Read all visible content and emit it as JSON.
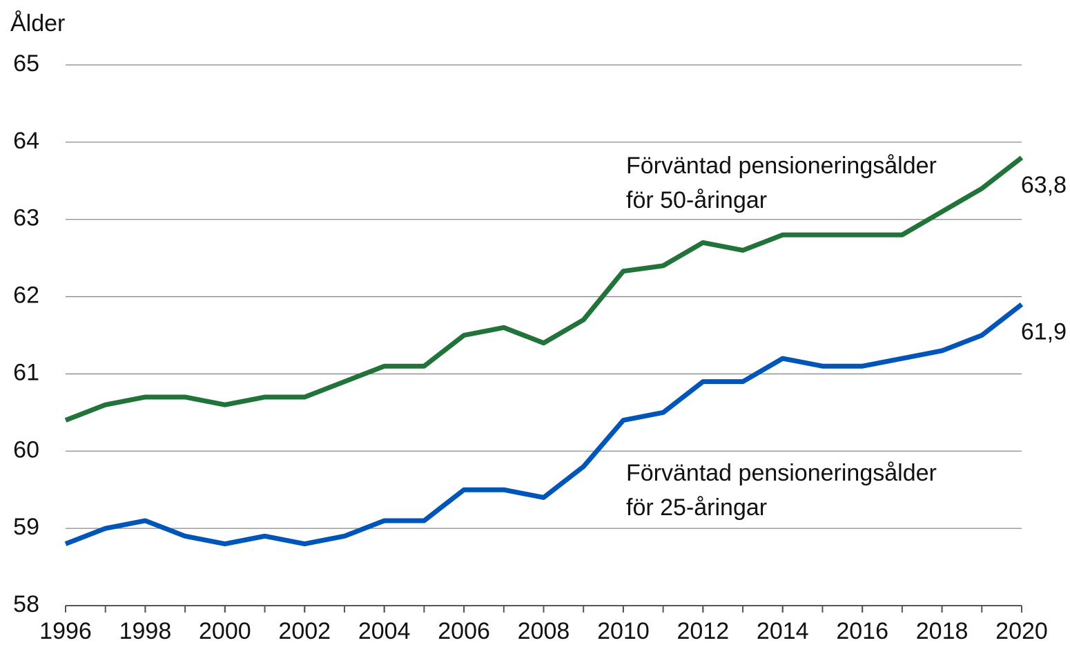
{
  "chart_data": {
    "type": "line",
    "y_label": "Ålder",
    "x": [
      1996,
      1997,
      1998,
      1999,
      2000,
      2001,
      2002,
      2003,
      2004,
      2005,
      2006,
      2007,
      2008,
      2009,
      2010,
      2011,
      2012,
      2013,
      2014,
      2015,
      2016,
      2017,
      2018,
      2019,
      2020
    ],
    "series": [
      {
        "label": [
          "Förväntad pensioneringsålder",
          "för 50-åringar"
        ],
        "color": "#22733a",
        "values": [
          60.4,
          60.6,
          60.7,
          60.7,
          60.6,
          60.7,
          60.7,
          60.9,
          61.1,
          61.1,
          61.5,
          61.6,
          61.4,
          61.7,
          62.33,
          62.4,
          62.7,
          62.6,
          62.8,
          62.8,
          62.8,
          62.8,
          63.1,
          63.4,
          63.8
        ],
        "value_labels": [
          null,
          null,
          null,
          null,
          null,
          null,
          null,
          null,
          null,
          null,
          null,
          null,
          null,
          null,
          null,
          null,
          null,
          null,
          null,
          null,
          null,
          null,
          null,
          null,
          "63,8"
        ]
      },
      {
        "label": [
          "Förväntad pensioneringsålder",
          "för 25-åringar"
        ],
        "color": "#0055b8",
        "values": [
          58.8,
          59.0,
          59.1,
          58.9,
          58.8,
          58.9,
          58.8,
          58.9,
          59.1,
          59.1,
          59.5,
          59.5,
          59.4,
          59.8,
          60.4,
          60.5,
          60.9,
          60.9,
          61.2,
          61.1,
          61.1,
          61.2,
          61.3,
          61.5,
          61.9
        ],
        "value_labels": [
          null,
          null,
          null,
          null,
          null,
          null,
          null,
          null,
          null,
          null,
          null,
          null,
          null,
          null,
          null,
          null,
          null,
          null,
          null,
          null,
          null,
          null,
          null,
          null,
          "61,9"
        ]
      }
    ],
    "xlim": [
      1996,
      2020
    ],
    "xticks": [
      1996,
      1998,
      2000,
      2002,
      2004,
      2006,
      2008,
      2010,
      2012,
      2014,
      2016,
      2018,
      2020
    ],
    "ylim": [
      58,
      65
    ],
    "yticks": [
      58,
      59,
      60,
      61,
      62,
      63,
      64,
      65
    ],
    "grid": true
  }
}
